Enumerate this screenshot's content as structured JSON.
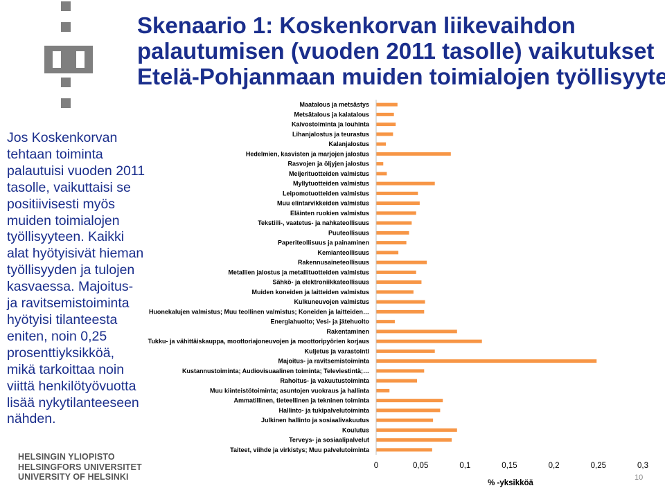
{
  "slide": {
    "title_lines": [
      "Skenaario 1: Koskenkorvan liikevaihdon",
      "palautumisen (vuoden 2011 tasolle) vaikutukset",
      "Etelä-Pohjanmaan muiden toimialojen työllisyyteen"
    ],
    "body_text": "Jos Koskenkorvan tehtaan toiminta palautuisi vuoden 2011 tasolle, vaikuttaisi se positiivisesti myös muiden toimialojen työllisyyteen. Kaikki alat hyötyisivät hieman työllisyyden ja tulojen kasvaessa. Majoitus- ja ravitsemistoiminta hyötyisi tilanteesta eniten, noin 0,25 prosenttiyksikköä, mikä tarkoittaa noin viittä henkilötyövuotta lisää nykytilanteeseen nähden.",
    "university_lines": [
      "HELSINGIN YLIOPISTO",
      "HELSINGFORS UNIVERSITET",
      "UNIVERSITY OF HELSINKI"
    ],
    "page_number": "10",
    "title_color": "#1a2e8c",
    "logo_icon": "university-of-helsinki-logo"
  },
  "chart_data": {
    "type": "bar",
    "orientation": "horizontal",
    "bar_color": "#f79646",
    "categories": [
      "Maatalous ja metsästys",
      "Metsätalous ja kalatalous",
      "Kaivostoiminta ja louhinta",
      "Lihanjalostus ja teurastus",
      "Kalanjalostus",
      "Hedelmien, kasvisten ja marjojen jalostus",
      "Rasvojen ja öljyjen jalostus",
      "Meijerituotteiden valmistus",
      "Myllytuotteiden valmistus",
      "Leipomotuotteiden valmistus",
      "Muu elintarvikkeiden valmistus",
      "Eläinten ruokien valmistus",
      "Tekstiili-, vaatetus- ja nahkateollisuus",
      "Puuteollisuus",
      "Paperiteollisuus ja painaminen",
      "Kemianteollisuus",
      "Rakennusaineteollisuus",
      "Metallien jalostus ja metallituotteiden valmistus",
      "Sähkö- ja elektroniikkateollisuus",
      "Muiden koneiden ja laitteiden valmistus",
      "Kulkuneuvojen valmistus",
      "Huonekalujen valmistus; Muu teollinen valmistus; Koneiden ja laitteiden…",
      "Energiahuolto; Vesi- ja jätehuolto",
      "Rakentaminen",
      "Tukku- ja vähittäiskauppa, moottoriajoneuvojen ja moottoripyörien korjaus",
      "Kuljetus ja varastointi",
      "Majoitus- ja ravitsemistoiminta",
      "Kustannustoiminta; Audiovisuaalinen toiminta; Televiestintä;…",
      "Rahoitus- ja vakuutustoiminta",
      "Muu kiinteistötoiminta; asuntojen vuokraus ja hallinta",
      "Ammatillinen, tieteellinen ja tekninen toiminta",
      "Hallinto- ja tukipalvelutoiminta",
      "Julkinen hallinto ja sosiaalivakuutus",
      "Koulutus",
      "Terveys- ja sosiaalipalvelut",
      "Taiteet, viihde ja virkistys; Muu palvelutoiminta"
    ],
    "values": [
      0.024,
      0.02,
      0.022,
      0.019,
      0.011,
      0.084,
      0.008,
      0.012,
      0.066,
      0.047,
      0.049,
      0.045,
      0.04,
      0.037,
      0.034,
      0.025,
      0.057,
      0.045,
      0.051,
      0.042,
      0.055,
      0.054,
      0.021,
      0.091,
      0.119,
      0.066,
      0.248,
      0.054,
      0.046,
      0.015,
      0.075,
      0.072,
      0.064,
      0.091,
      0.085,
      0.063
    ],
    "xlim": [
      0,
      0.3
    ],
    "xticks": [
      "0",
      "0,05",
      "0,1",
      "0,15",
      "0,2",
      "0,25",
      "0,3"
    ],
    "xtick_values": [
      0,
      0.05,
      0.1,
      0.15,
      0.2,
      0.25,
      0.3
    ],
    "xlabel": "% -yksikköä",
    "ylabel": "",
    "title": "",
    "grid": false,
    "legend": "none"
  }
}
